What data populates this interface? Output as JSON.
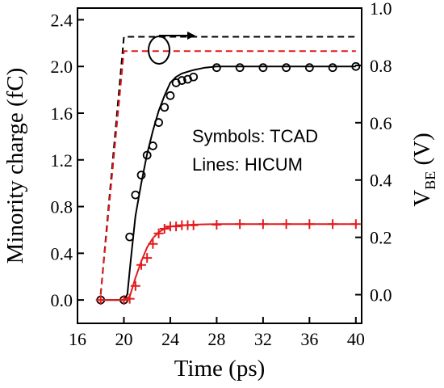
{
  "chart_data": {
    "type": "line",
    "xlabel": "Time (ps)",
    "ylabel_left": "Minority charge (fC)",
    "ylabel_right_main": "V",
    "ylabel_right_sub": "BE",
    "ylabel_right_unit": " (V)",
    "xlim": [
      16,
      40.5
    ],
    "ylim_left": [
      -0.2,
      2.5
    ],
    "ylim_right": [
      -0.1,
      1.0
    ],
    "xticks": [
      "16",
      "20",
      "24",
      "28",
      "32",
      "36",
      "40"
    ],
    "yticks_left": [
      "0.0",
      "0.4",
      "0.8",
      "1.2",
      "1.6",
      "2.0",
      "2.4"
    ],
    "yticks_right": [
      "0.0",
      "0.2",
      "0.4",
      "0.6",
      "0.8",
      "1.0"
    ],
    "annotations": [
      "Symbols: TCAD",
      "Lines: HICUM"
    ],
    "colors": {
      "black": "#000000",
      "red": "#e31a1c"
    },
    "series": [
      {
        "color": "black",
        "style": "solid",
        "axis": "left",
        "x": [
          18,
          20,
          20.3,
          20.6,
          21,
          21.5,
          22,
          22.5,
          23,
          23.5,
          24,
          24.5,
          25,
          26,
          27,
          28,
          30,
          32,
          34,
          36,
          38,
          40
        ],
        "y": [
          0,
          0,
          0.05,
          0.35,
          0.72,
          1.0,
          1.25,
          1.45,
          1.62,
          1.75,
          1.86,
          1.91,
          1.94,
          1.97,
          1.99,
          2.0,
          2.0,
          2.0,
          2.0,
          2.0,
          2.0,
          2.0
        ]
      },
      {
        "color": "black",
        "style": "circles",
        "axis": "left",
        "x": [
          18,
          20,
          20.5,
          21,
          21.5,
          22,
          22.5,
          23,
          23.5,
          24,
          24.5,
          25,
          25.5,
          26,
          28,
          30,
          32,
          34,
          36,
          38,
          40
        ],
        "y": [
          0,
          0,
          0.54,
          0.9,
          1.07,
          1.24,
          1.32,
          1.52,
          1.65,
          1.75,
          1.86,
          1.88,
          1.89,
          1.91,
          1.99,
          1.99,
          1.99,
          1.99,
          1.99,
          1.99,
          2.0
        ]
      },
      {
        "color": "red",
        "style": "solid",
        "axis": "left",
        "x": [
          18,
          20,
          20.5,
          21,
          21.5,
          22,
          22.5,
          23,
          23.5,
          24,
          25,
          26,
          28,
          30,
          32,
          34,
          36,
          38,
          40
        ],
        "y": [
          0,
          0,
          0.03,
          0.19,
          0.33,
          0.45,
          0.53,
          0.58,
          0.61,
          0.63,
          0.64,
          0.645,
          0.65,
          0.65,
          0.65,
          0.65,
          0.65,
          0.65,
          0.65
        ]
      },
      {
        "color": "red",
        "style": "plus",
        "axis": "left",
        "x": [
          18,
          20,
          20.5,
          21,
          21.5,
          22,
          22.5,
          23,
          23.5,
          24,
          24.5,
          25,
          25.5,
          26,
          28,
          30,
          32,
          34,
          36,
          38,
          40
        ],
        "y": [
          0,
          0,
          0.01,
          0.12,
          0.3,
          0.36,
          0.48,
          0.57,
          0.61,
          0.63,
          0.63,
          0.64,
          0.64,
          0.64,
          0.645,
          0.65,
          0.65,
          0.65,
          0.65,
          0.65,
          0.65
        ]
      },
      {
        "color": "black",
        "style": "dashed",
        "axis": "right",
        "x": [
          18,
          20,
          40
        ],
        "y": [
          0,
          0.9,
          0.9
        ]
      },
      {
        "color": "red",
        "style": "dashed",
        "axis": "right",
        "x": [
          18,
          20,
          40
        ],
        "y": [
          0,
          0.85,
          0.85
        ]
      }
    ]
  }
}
